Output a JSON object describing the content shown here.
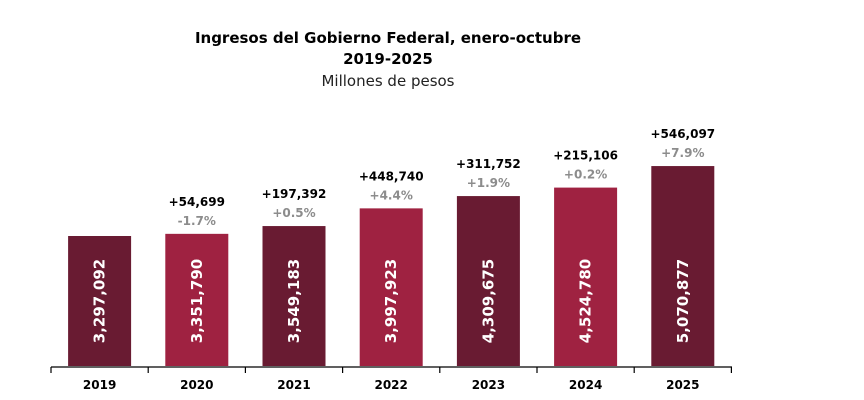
{
  "chart_data": {
    "type": "bar",
    "title": "Ingresos del Gobierno Federal, enero-octubre",
    "subtitle_years": "2019-2025",
    "subtitle_units": "Millones de pesos",
    "categories": [
      "2019",
      "2020",
      "2021",
      "2022",
      "2023",
      "2024",
      "2025"
    ],
    "values": [
      3297092,
      3351790,
      3549183,
      3997923,
      4309675,
      4524780,
      5070877
    ],
    "value_labels": [
      "3,297,092",
      "3,351,790",
      "3,549,183",
      "3,997,923",
      "4,309,675",
      "4,524,780",
      "5,070,877"
    ],
    "diff_labels": [
      "",
      "+54,699",
      "+197,392",
      "+448,740",
      "+311,752",
      "+215,106",
      "+546,097"
    ],
    "pct_labels": [
      "",
      "-1.7%",
      "+0.5%",
      "+4.4%",
      "+1.9%",
      "+0.2%",
      "+7.9%"
    ],
    "colors": [
      "#691b32",
      "#9f2241",
      "#691b32",
      "#9f2241",
      "#691b32",
      "#9f2241",
      "#691b32"
    ],
    "ylim": [
      0,
      5500000
    ],
    "grid": false
  }
}
